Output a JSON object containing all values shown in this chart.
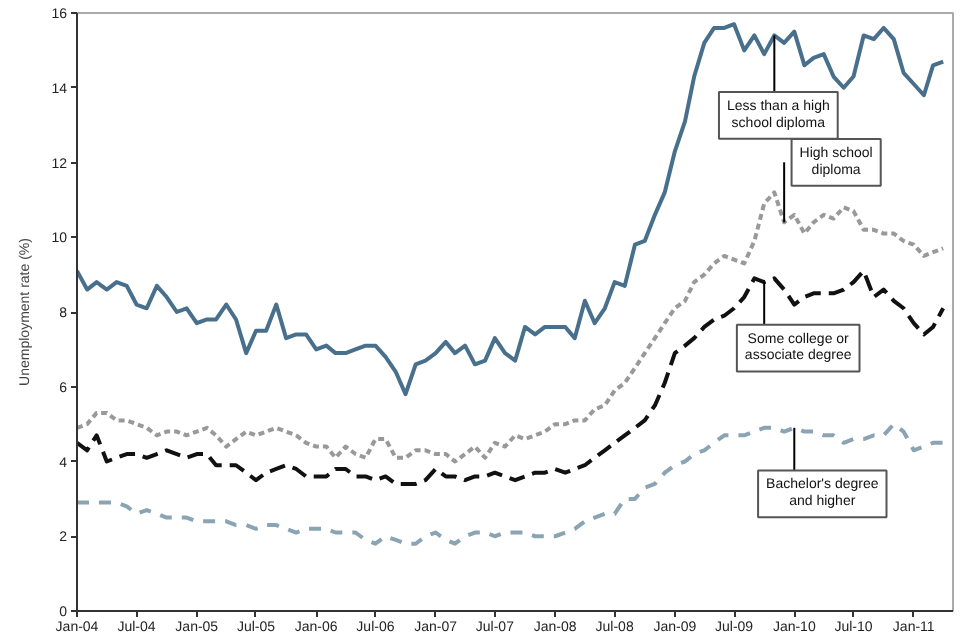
{
  "chart_data": {
    "type": "line",
    "ylabel": "Unemployment rate (%)",
    "grid": false,
    "marker": "none",
    "xlim": [
      "2004-01",
      "2011-05"
    ],
    "ylim": [
      0,
      16
    ],
    "yticks": [
      0,
      2,
      4,
      6,
      8,
      10,
      12,
      14,
      16
    ],
    "xticks": [
      {
        "value": "2004-01",
        "label": "Jan-04"
      },
      {
        "value": "2004-07",
        "label": "Jul-04"
      },
      {
        "value": "2005-01",
        "label": "Jan-05"
      },
      {
        "value": "2005-07",
        "label": "Jul-05"
      },
      {
        "value": "2006-01",
        "label": "Jan-06"
      },
      {
        "value": "2006-07",
        "label": "Jul-06"
      },
      {
        "value": "2007-01",
        "label": "Jan-07"
      },
      {
        "value": "2007-07",
        "label": "Jul-07"
      },
      {
        "value": "2008-01",
        "label": "Jan-08"
      },
      {
        "value": "2008-07",
        "label": "Jul-08"
      },
      {
        "value": "2009-01",
        "label": "Jan-09"
      },
      {
        "value": "2009-07",
        "label": "Jul-09"
      },
      {
        "value": "2010-01",
        "label": "Jan-10"
      },
      {
        "value": "2010-07",
        "label": "Jul-10"
      },
      {
        "value": "2011-01",
        "label": "Jan-11"
      }
    ],
    "x": [
      "2004-01",
      "2004-02",
      "2004-03",
      "2004-04",
      "2004-05",
      "2004-06",
      "2004-07",
      "2004-08",
      "2004-09",
      "2004-10",
      "2004-11",
      "2004-12",
      "2005-01",
      "2005-02",
      "2005-03",
      "2005-04",
      "2005-05",
      "2005-06",
      "2005-07",
      "2005-08",
      "2005-09",
      "2005-10",
      "2005-11",
      "2005-12",
      "2006-01",
      "2006-02",
      "2006-03",
      "2006-04",
      "2006-05",
      "2006-06",
      "2006-07",
      "2006-08",
      "2006-09",
      "2006-10",
      "2006-11",
      "2006-12",
      "2007-01",
      "2007-02",
      "2007-03",
      "2007-04",
      "2007-05",
      "2007-06",
      "2007-07",
      "2007-08",
      "2007-09",
      "2007-10",
      "2007-11",
      "2007-12",
      "2008-01",
      "2008-02",
      "2008-03",
      "2008-04",
      "2008-05",
      "2008-06",
      "2008-07",
      "2008-08",
      "2008-09",
      "2008-10",
      "2008-11",
      "2008-12",
      "2009-01",
      "2009-02",
      "2009-03",
      "2009-04",
      "2009-05",
      "2009-06",
      "2009-07",
      "2009-08",
      "2009-09",
      "2009-10",
      "2009-11",
      "2009-12",
      "2010-01",
      "2010-02",
      "2010-03",
      "2010-04",
      "2010-05",
      "2010-06",
      "2010-07",
      "2010-08",
      "2010-09",
      "2010-10",
      "2010-11",
      "2010-12",
      "2011-01",
      "2011-02",
      "2011-03",
      "2011-04"
    ],
    "series": [
      {
        "color": "#48708c",
        "line_style": "solid",
        "values": [
          9.1,
          8.6,
          8.8,
          8.6,
          8.8,
          8.7,
          8.2,
          8.1,
          8.7,
          8.4,
          8.0,
          8.1,
          7.7,
          7.8,
          7.8,
          8.2,
          7.8,
          6.9,
          7.5,
          7.5,
          8.2,
          7.3,
          7.4,
          7.4,
          7.0,
          7.1,
          6.9,
          6.9,
          7.0,
          7.1,
          7.1,
          6.8,
          6.4,
          5.8,
          6.6,
          6.7,
          6.9,
          7.2,
          6.9,
          7.1,
          6.6,
          6.7,
          7.3,
          6.9,
          6.7,
          7.6,
          7.4,
          7.6,
          7.6,
          7.6,
          7.3,
          8.3,
          7.7,
          8.1,
          8.8,
          8.7,
          9.8,
          9.9,
          10.6,
          11.2,
          12.3,
          13.1,
          14.3,
          15.2,
          15.6,
          15.6,
          15.7,
          15.0,
          15.4,
          14.9,
          15.4,
          15.2,
          15.5,
          14.6,
          14.8,
          14.9,
          14.3,
          14.0,
          14.3,
          15.4,
          15.3,
          15.6,
          15.3,
          14.4,
          14.1,
          13.8,
          14.6,
          14.7
        ]
      },
      {
        "color": "#999999",
        "line_style": "dotted",
        "values": [
          4.9,
          5.0,
          5.3,
          5.3,
          5.1,
          5.1,
          5.0,
          4.9,
          4.7,
          4.8,
          4.8,
          4.7,
          4.8,
          4.9,
          4.7,
          4.4,
          4.6,
          4.8,
          4.7,
          4.8,
          4.9,
          4.8,
          4.7,
          4.5,
          4.4,
          4.4,
          4.1,
          4.4,
          4.2,
          4.1,
          4.6,
          4.6,
          4.1,
          4.1,
          4.3,
          4.3,
          4.2,
          4.2,
          4.0,
          4.2,
          4.4,
          4.1,
          4.5,
          4.4,
          4.7,
          4.6,
          4.7,
          4.8,
          5.0,
          5.0,
          5.1,
          5.1,
          5.4,
          5.5,
          5.9,
          6.1,
          6.5,
          6.9,
          7.3,
          7.7,
          8.1,
          8.3,
          8.8,
          9.0,
          9.3,
          9.5,
          9.4,
          9.3,
          9.9,
          10.9,
          11.2,
          10.4,
          10.6,
          10.1,
          10.4,
          10.6,
          10.5,
          10.8,
          10.7,
          10.2,
          10.2,
          10.1,
          10.1,
          9.9,
          9.8,
          9.5,
          9.6,
          9.7
        ]
      },
      {
        "color": "#111111",
        "line_style": "dashed",
        "values": [
          4.5,
          4.3,
          4.7,
          4.0,
          4.1,
          4.2,
          4.2,
          4.1,
          4.2,
          4.3,
          4.2,
          4.1,
          4.2,
          4.2,
          3.9,
          3.9,
          3.9,
          3.7,
          3.5,
          3.7,
          3.8,
          3.9,
          3.8,
          3.6,
          3.6,
          3.6,
          3.8,
          3.8,
          3.6,
          3.6,
          3.5,
          3.6,
          3.4,
          3.4,
          3.4,
          3.5,
          3.8,
          3.6,
          3.6,
          3.5,
          3.6,
          3.6,
          3.7,
          3.6,
          3.5,
          3.6,
          3.7,
          3.7,
          3.8,
          3.7,
          3.8,
          3.9,
          4.1,
          4.3,
          4.5,
          4.7,
          4.9,
          5.1,
          5.5,
          6.1,
          6.9,
          7.1,
          7.3,
          7.6,
          7.8,
          7.9,
          8.1,
          8.4,
          8.9,
          8.8,
          8.9,
          8.6,
          8.2,
          8.4,
          8.5,
          8.5,
          8.5,
          8.6,
          8.8,
          9.1,
          8.4,
          8.6,
          8.3,
          8.1,
          7.7,
          7.4,
          7.6,
          8.1
        ]
      },
      {
        "color": "#8aa4b4",
        "line_style": "dashed",
        "values": [
          2.9,
          2.9,
          2.9,
          2.9,
          2.9,
          2.8,
          2.6,
          2.7,
          2.6,
          2.5,
          2.5,
          2.5,
          2.4,
          2.4,
          2.4,
          2.4,
          2.3,
          2.3,
          2.2,
          2.3,
          2.3,
          2.2,
          2.1,
          2.2,
          2.2,
          2.2,
          2.1,
          2.1,
          2.1,
          1.9,
          1.8,
          2.0,
          1.9,
          1.8,
          1.8,
          2.0,
          2.1,
          1.9,
          1.8,
          2.0,
          2.1,
          2.1,
          2.0,
          2.1,
          2.1,
          2.1,
          2.0,
          2.0,
          2.0,
          2.1,
          2.2,
          2.4,
          2.5,
          2.6,
          2.6,
          3.0,
          3.0,
          3.3,
          3.4,
          3.7,
          3.9,
          4.0,
          4.2,
          4.3,
          4.5,
          4.7,
          4.7,
          4.7,
          4.8,
          4.9,
          4.9,
          4.8,
          4.9,
          4.8,
          4.8,
          4.7,
          4.7,
          4.5,
          4.6,
          4.6,
          4.7,
          4.7,
          5.0,
          4.8,
          4.3,
          4.4,
          4.5,
          4.5
        ]
      }
    ],
    "annotations": [
      {
        "text": "Less than a high\nschool diploma",
        "x": "2009-11",
        "y": 15.4
      },
      {
        "text": "High school\ndiploma",
        "x": "2009-12",
        "y": 10.4
      },
      {
        "text": "Some college or\nassociate degree",
        "x": "2009-10",
        "y": 8.8
      },
      {
        "text": "Bachelor's degree\nand higher",
        "x": "2010-01",
        "y": 4.9
      }
    ]
  }
}
